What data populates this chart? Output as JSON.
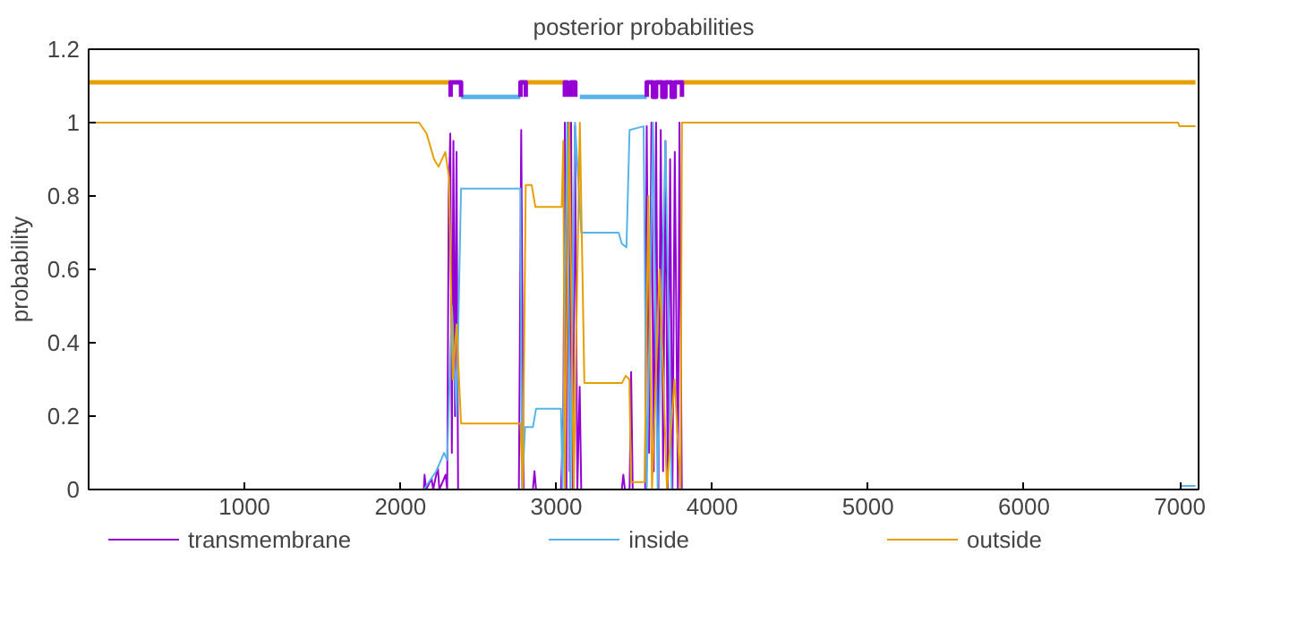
{
  "chart_data": {
    "type": "line",
    "title": "posterior probabilities",
    "ylabel": "probability",
    "xlim": [
      0,
      7120
    ],
    "xticks": [
      1000,
      2000,
      3000,
      4000,
      5000,
      6000,
      7000
    ],
    "ylim": [
      0,
      1.2
    ],
    "yticks": [
      0,
      0.2,
      0.4,
      0.6,
      0.8,
      1,
      1.2
    ],
    "grid": false,
    "legend": "bottom",
    "line_style": "solid",
    "series": [
      {
        "name": "transmembrane",
        "color": "#9400d3",
        "x": [
          0,
          2150,
          2155,
          2165,
          2200,
          2210,
          2240,
          2250,
          2290,
          2300,
          2310,
          2320,
          2330,
          2340,
          2350,
          2360,
          2370,
          2760,
          2775,
          2790,
          2850,
          2860,
          2870,
          3030,
          3045,
          3055,
          3065,
          3075,
          3085,
          3095,
          3105,
          3120,
          3135,
          3150,
          3160,
          3420,
          3430,
          3440,
          3470,
          3480,
          3490,
          3570,
          3580,
          3595,
          3610,
          3625,
          3640,
          3655,
          3670,
          3685,
          3700,
          3715,
          3730,
          3745,
          3760,
          3780,
          3790,
          3805,
          7100
        ],
        "values": [
          0,
          0,
          0.04,
          0,
          0.03,
          0,
          0.06,
          0,
          0.04,
          0,
          0.8,
          0.97,
          0.1,
          0.95,
          0.2,
          0.92,
          0,
          0,
          0.98,
          0,
          0,
          0.05,
          0,
          0,
          0.2,
          1,
          0,
          1,
          0.05,
          1,
          0,
          0.99,
          0,
          0.28,
          0,
          0,
          0.04,
          0,
          0,
          0.32,
          0,
          0,
          0.99,
          0.1,
          1,
          0.05,
          1,
          0,
          0.98,
          0.05,
          0.95,
          0,
          0.9,
          0,
          0.92,
          0,
          1,
          0,
          0
        ]
      },
      {
        "name": "inside",
        "color": "#56b4e9",
        "x": [
          0,
          2150,
          2230,
          2280,
          2300,
          2330,
          2360,
          2389,
          2770,
          2780,
          2800,
          2850,
          2870,
          3030,
          3040,
          3070,
          3090,
          3120,
          3160,
          3400,
          3420,
          3450,
          3470,
          3560,
          3580,
          3620,
          3650,
          3700,
          3740,
          7000,
          7010,
          7100
        ],
        "values": [
          0,
          0,
          0.05,
          0.1,
          0.08,
          0.5,
          0.2,
          0.82,
          0.82,
          0,
          0.17,
          0.17,
          0.22,
          0.22,
          0,
          1,
          0,
          1,
          0.7,
          0.7,
          0.67,
          0.66,
          0.98,
          0.99,
          0,
          1,
          0,
          0.95,
          0,
          0,
          0.01,
          0.01
        ]
      },
      {
        "name": "outside",
        "color": "#e69f00",
        "x": [
          0,
          2120,
          2168,
          2216,
          2245,
          2288,
          2312,
          2336,
          2360,
          2389,
          2770,
          2785,
          2804,
          2842,
          2866,
          3035,
          3045,
          3055,
          3083,
          3112,
          3151,
          3180,
          3421,
          3445,
          3469,
          3479,
          3566,
          3590,
          3614,
          3662,
          3710,
          3758,
          3797,
          3806,
          6988,
          6998,
          7100
        ],
        "values": [
          1,
          1,
          0.97,
          0.9,
          0.88,
          0.92,
          0.85,
          0.3,
          0.45,
          0.18,
          0.18,
          0,
          0.83,
          0.83,
          0.77,
          0.77,
          0.95,
          0,
          1,
          0,
          1,
          0.29,
          0.29,
          0.31,
          0.3,
          0.02,
          0.02,
          0.8,
          0,
          0.6,
          0,
          0.3,
          0,
          1,
          1,
          0.99,
          0.99
        ]
      },
      {
        "color": "#e69f00",
        "x": [
          0,
          2322,
          2323,
          2804,
          3055,
          3056,
          3806,
          7100
        ],
        "values": [
          1.11,
          1.11,
          null,
          1.11,
          1.11,
          null,
          1.11,
          1.11
        ]
      },
      {
        "color": "#56b4e9",
        "x": [
          2389,
          2770,
          2771,
          3151,
          3580
        ],
        "values": [
          1.07,
          1.07,
          null,
          1.07,
          1.07
        ]
      },
      {
        "color": "#9400d3",
        "x": [
          2322,
          2322,
          2389,
          2389,
          2390,
          2770,
          2770,
          2804,
          2804,
          2805,
          3055,
          3055,
          3070,
          3070,
          3071,
          3093,
          3093,
          3122,
          3122,
          3123,
          3580,
          3580,
          3620,
          3620,
          3640,
          3640,
          3680,
          3680,
          3700,
          3700,
          3740,
          3740,
          3760,
          3760,
          3806,
          3806
        ],
        "values": [
          1.07,
          1.11,
          1.11,
          1.07,
          null,
          1.07,
          1.11,
          1.11,
          1.07,
          null,
          1.07,
          1.11,
          1.11,
          1.07,
          null,
          1.07,
          1.11,
          1.11,
          1.07,
          null,
          1.07,
          1.11,
          1.11,
          1.07,
          1.07,
          1.11,
          1.11,
          1.07,
          1.07,
          1.11,
          1.11,
          1.07,
          1.07,
          1.11,
          1.11,
          1.07
        ]
      }
    ]
  }
}
